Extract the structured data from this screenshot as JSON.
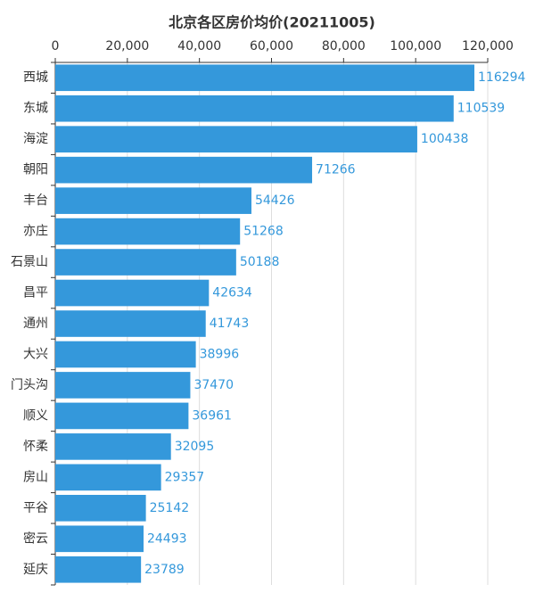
{
  "chart_data": {
    "type": "bar",
    "orientation": "horizontal",
    "title": "北京各区房价均价(20211005)",
    "categories": [
      "西城",
      "东城",
      "海淀",
      "朝阳",
      "丰台",
      "亦庄",
      "石景山",
      "昌平",
      "通州",
      "大兴",
      "门头沟",
      "顺义",
      "怀柔",
      "房山",
      "平谷",
      "密云",
      "延庆"
    ],
    "values": [
      116294,
      110539,
      100438,
      71266,
      54426,
      51268,
      50188,
      42634,
      41743,
      38996,
      37470,
      36961,
      32095,
      29357,
      25142,
      24493,
      23789
    ],
    "color": "#3498db",
    "xlim": [
      0,
      120000
    ],
    "xticks": [
      0,
      {
        "value": 20000,
        "label": "20,000"
      },
      {
        "value": 40000,
        "label": "40,000"
      },
      {
        "value": 60000,
        "label": "60,000"
      },
      {
        "value": 80000,
        "label": "80,000"
      },
      {
        "value": 100000,
        "label": "100,000"
      },
      {
        "value": 120000,
        "label": "120,000"
      }
    ],
    "grid": true
  }
}
